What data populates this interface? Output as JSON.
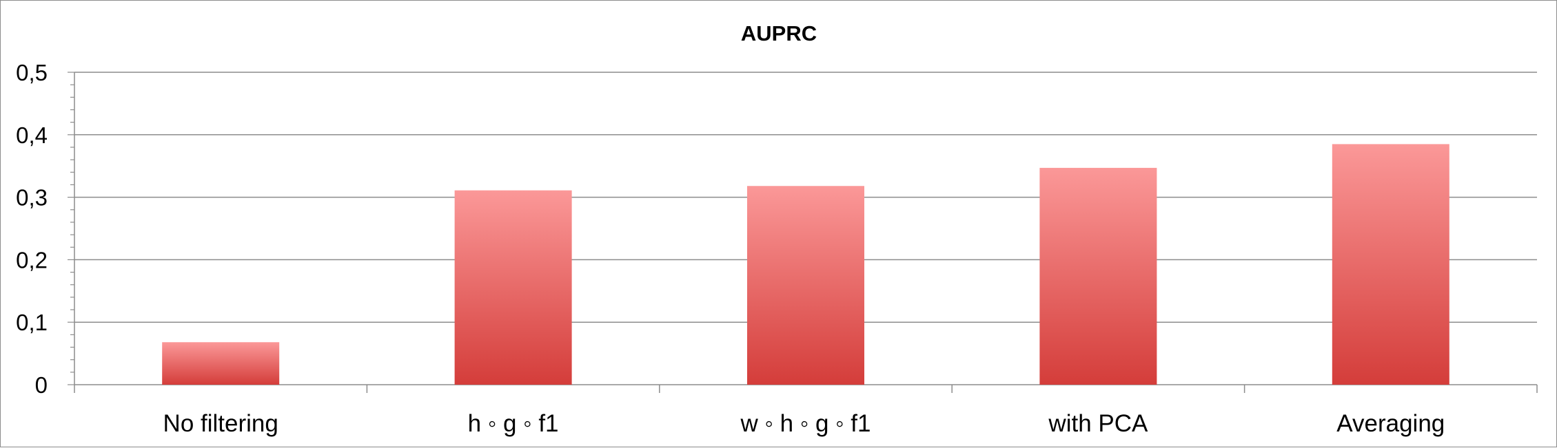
{
  "chart_data": {
    "type": "bar",
    "title": "AUPRC",
    "xlabel": "",
    "ylabel": "",
    "categories": [
      "No filtering",
      "h ◦ g ◦ f1",
      "w ◦ h ◦ g ◦ f1",
      "with PCA",
      "Averaging"
    ],
    "values": [
      0.068,
      0.311,
      0.318,
      0.347,
      0.385
    ],
    "ylim": [
      0,
      0.5
    ],
    "yticks": [
      0,
      0.1,
      0.2,
      0.3,
      0.4,
      0.5
    ],
    "ytick_labels": [
      "0",
      "0,1",
      "0,2",
      "0,3",
      "0,4",
      "0,5"
    ],
    "grid": true,
    "legend": "none",
    "bar_color_top": "#fb9898",
    "bar_color_bottom": "#d43d3a",
    "grid_color": "#8c8c8c"
  }
}
